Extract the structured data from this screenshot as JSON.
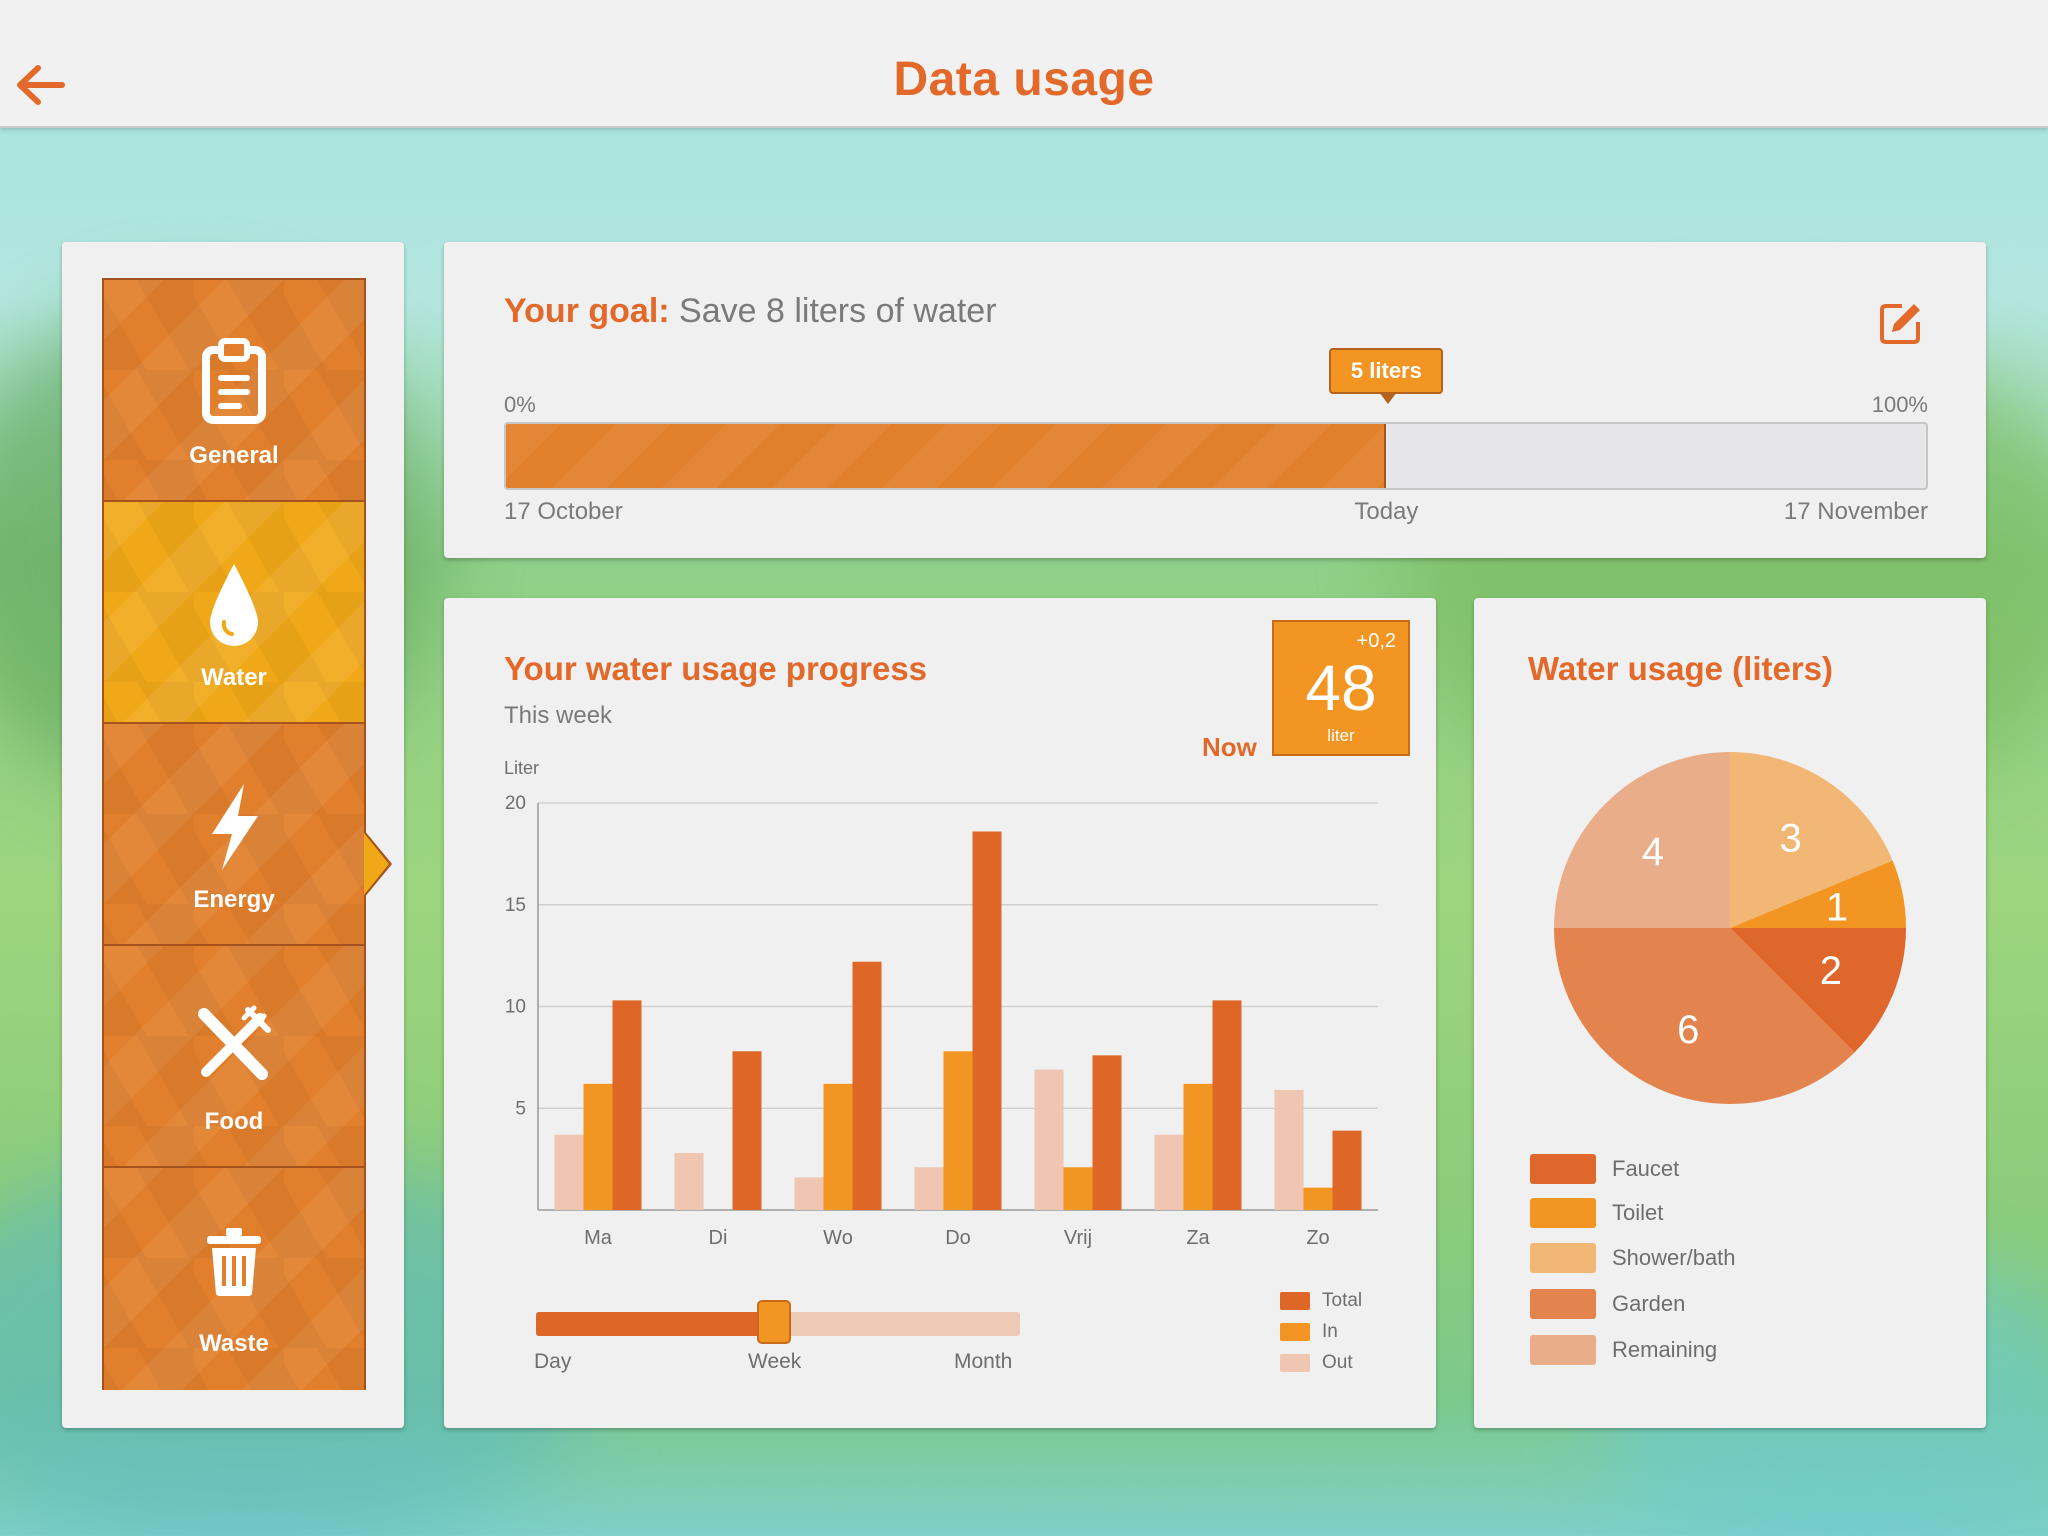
{
  "header": {
    "title": "Data usage",
    "back_icon": "arrow-left-icon",
    "accent_color": "#e2692a"
  },
  "sidebar": {
    "active": "Water",
    "items": [
      {
        "label": "General",
        "icon": "clipboard-icon"
      },
      {
        "label": "Water",
        "icon": "water-drop-icon"
      },
      {
        "label": "Energy",
        "icon": "lightning-bolt-icon"
      },
      {
        "label": "Food",
        "icon": "fork-knife-icon"
      },
      {
        "label": "Waste",
        "icon": "trash-can-icon"
      }
    ]
  },
  "goal": {
    "label": "Your goal:",
    "value": "Save 8 liters of water",
    "start_pct": "0%",
    "end_pct": "100%",
    "current": "5 liters",
    "progress_fraction": 0.62,
    "start_date": "17 October",
    "today_label": "Today",
    "end_date": "17 November",
    "edit_icon": "edit-icon"
  },
  "progress": {
    "title": "Your water usage progress",
    "subtitle": "This week",
    "now_label": "Now",
    "now_delta": "+0,2",
    "now_value": "48",
    "now_unit": "liter",
    "range": {
      "options": [
        "Day",
        "Week",
        "Month"
      ],
      "selected": "Week"
    }
  },
  "chart_data": [
    {
      "type": "bar",
      "ylabel": "Liter",
      "ylim": [
        0,
        20
      ],
      "yticks": [
        5,
        10,
        15,
        20
      ],
      "grid": true,
      "legend": "bottom-right",
      "categories": [
        "Ma",
        "Di",
        "Wo",
        "Do",
        "Vrij",
        "Za",
        "Zo"
      ],
      "series": [
        {
          "name": "Out",
          "color": "#eec6b2",
          "values": [
            3.7,
            2.8,
            1.6,
            2.1,
            6.9,
            3.7,
            5.9
          ]
        },
        {
          "name": "In",
          "color": "#f29522",
          "values": [
            6.2,
            0,
            6.2,
            7.8,
            2.1,
            6.2,
            1.1
          ]
        },
        {
          "name": "Total",
          "color": "#de6627",
          "values": [
            10.3,
            7.8,
            12.2,
            18.6,
            7.6,
            10.3,
            3.9
          ]
        }
      ],
      "legend_order": [
        "Total",
        "In",
        "Out"
      ]
    },
    {
      "type": "pie",
      "title": "Water usage (liters)",
      "slices": [
        {
          "label": "Shower/bath",
          "value": 3,
          "color": "#f2b774"
        },
        {
          "label": "Toilet",
          "value": 1,
          "color": "#f29522"
        },
        {
          "label": "Faucet",
          "value": 2,
          "color": "#e0672b"
        },
        {
          "label": "Garden",
          "value": 6,
          "color": "#e3844f"
        },
        {
          "label": "Remaining",
          "value": 4,
          "color": "#e9ad8a"
        }
      ],
      "legend": [
        "Faucet",
        "Toilet",
        "Shower/bath",
        "Garden",
        "Remaining"
      ]
    }
  ]
}
